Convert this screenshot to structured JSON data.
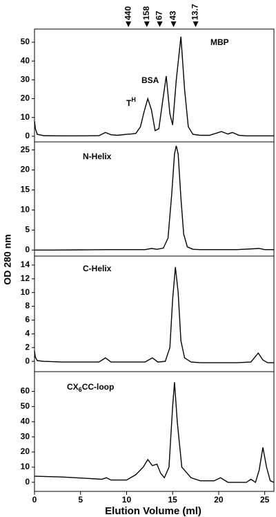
{
  "axes": {
    "xlabel": "Elution Volume (ml)",
    "ylabel": "OD 280 nm",
    "xlim": [
      0,
      26
    ],
    "xticks": [
      0,
      5,
      10,
      15,
      20,
      25
    ],
    "markers": [
      10.2,
      12.2,
      13.6,
      15.1,
      17.5
    ],
    "marker_labels": [
      "440",
      "158",
      "67",
      "43",
      "13.7"
    ]
  },
  "chart_data": [
    {
      "type": "line",
      "annotations": [
        "MBP",
        "BSA",
        [
          "T",
          "H"
        ]
      ],
      "ylim": [
        -3,
        57
      ],
      "yticks": [
        0,
        10,
        20,
        30,
        40,
        50
      ],
      "x": [
        0,
        0.1,
        0.3,
        1,
        3,
        5,
        7,
        7.7,
        8.3,
        9,
        10,
        10.5,
        11,
        11.5,
        11.9,
        12.3,
        12.7,
        13.1,
        13.5,
        13.9,
        14.3,
        14.7,
        15.0,
        15.4,
        15.9,
        16.3,
        16.7,
        17.2,
        18,
        19,
        20.3,
        21,
        21.5,
        22.2,
        23,
        25,
        26
      ],
      "values": [
        8,
        4,
        1,
        0.3,
        0.2,
        0.2,
        0.3,
        2,
        0.8,
        0.5,
        1,
        1.2,
        1.5,
        5,
        13,
        20,
        14,
        3,
        4,
        18,
        32,
        12,
        6,
        30,
        53,
        25,
        5,
        1,
        0.5,
        0.5,
        2.5,
        1.2,
        2,
        0.5,
        0.2,
        0.2,
        0.2
      ]
    },
    {
      "type": "line",
      "annotations": [
        "N-Helix"
      ],
      "ylim": [
        -1.5,
        27
      ],
      "yticks": [
        0,
        5,
        10,
        15,
        20,
        25
      ],
      "x": [
        0,
        2,
        5,
        8,
        10,
        12,
        12.7,
        13.3,
        14,
        14.5,
        14.9,
        15.2,
        15.4,
        15.6,
        15.9,
        16.2,
        16.6,
        17.2,
        18,
        20,
        22,
        24.4,
        25,
        26
      ],
      "values": [
        0,
        0,
        0.05,
        0.1,
        0.1,
        0.1,
        0.4,
        0.2,
        0.5,
        3,
        14,
        24,
        26,
        24,
        13,
        4,
        0.8,
        0.2,
        0.1,
        0.1,
        0.1,
        0.4,
        0.1,
        0.1
      ]
    },
    {
      "type": "line",
      "annotations": [
        "C-Helix"
      ],
      "ylim": [
        -1.5,
        15.3
      ],
      "yticks": [
        0,
        2,
        4,
        6,
        8,
        10,
        12,
        14
      ],
      "x": [
        0,
        0.1,
        0.3,
        1,
        3,
        5,
        7,
        7.7,
        8.3,
        10,
        12,
        12.8,
        13.4,
        14.2,
        14.7,
        15.0,
        15.3,
        15.6,
        15.9,
        16.3,
        17,
        18,
        20,
        22,
        23.5,
        24.3,
        24.8,
        25.3,
        26
      ],
      "values": [
        1.5,
        0.6,
        0.1,
        0,
        -0.1,
        -0.1,
        -0.1,
        0.5,
        -0.1,
        -0.1,
        -0.1,
        0.5,
        -0.1,
        0,
        2,
        9,
        13.7,
        10,
        3,
        0.5,
        -0.1,
        -0.2,
        -0.2,
        -0.2,
        -0.1,
        1.2,
        0.2,
        -0.2,
        -0.2
      ]
    },
    {
      "type": "line",
      "annotations": [
        "CX",
        "6",
        "CC-loop"
      ],
      "ylim": [
        -6,
        73
      ],
      "yticks": [
        0,
        10,
        20,
        30,
        40,
        50,
        60
      ],
      "x": [
        0,
        3,
        6,
        7.3,
        7.8,
        8.3,
        10,
        11,
        11.8,
        12.3,
        12.8,
        13.3,
        13.7,
        14.1,
        14.6,
        15.0,
        15.2,
        15.5,
        16,
        17,
        18,
        19.5,
        20.2,
        21,
        23,
        23.5,
        24,
        24.4,
        24.8,
        25.2,
        25.6,
        26
      ],
      "values": [
        4,
        3.5,
        2.5,
        2,
        3,
        1.5,
        1.5,
        5,
        10,
        15,
        11,
        12,
        6,
        3,
        10,
        50,
        66,
        40,
        10,
        3,
        1,
        1,
        3,
        0,
        0,
        2,
        0,
        8,
        23,
        10,
        1,
        0
      ]
    }
  ]
}
